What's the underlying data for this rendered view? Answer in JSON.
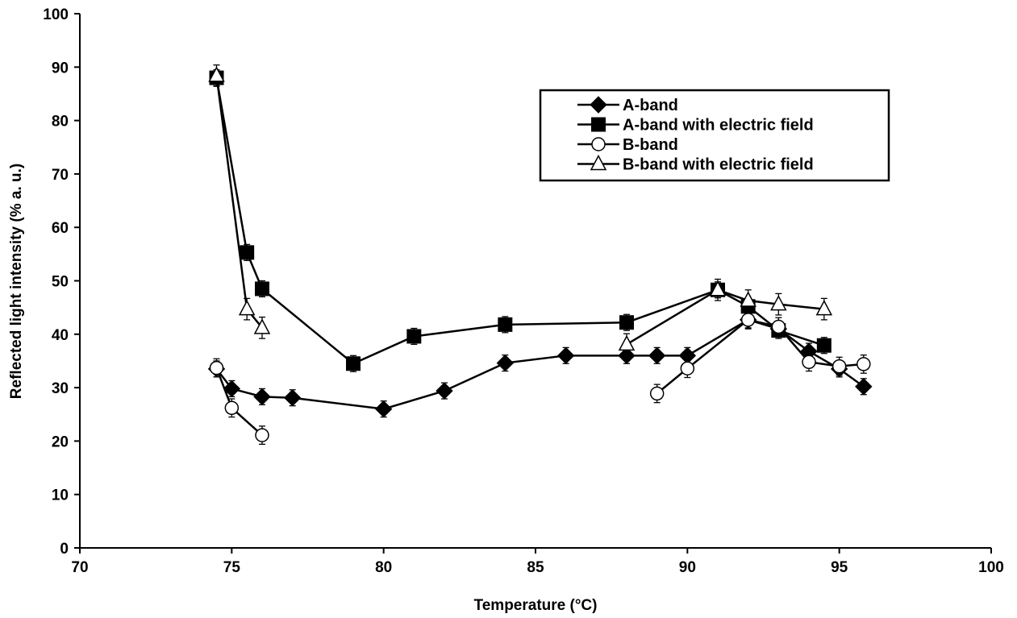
{
  "chart_data": {
    "type": "scatter",
    "title": "",
    "xlabel": "Temperature (°C)",
    "ylabel": "Reflected light intensity (% a. u.)",
    "xlim": [
      70,
      100
    ],
    "ylim": [
      0,
      100
    ],
    "xticks": [
      70,
      75,
      80,
      85,
      90,
      95,
      100
    ],
    "yticks": [
      0,
      10,
      20,
      30,
      40,
      50,
      60,
      70,
      80,
      90,
      100
    ],
    "grid": false,
    "legend_position": "top-right",
    "series": [
      {
        "name": "A-band",
        "marker": "diamond-filled",
        "segments": [
          [
            [
              74.5,
              33.5
            ],
            [
              75.0,
              29.8
            ],
            [
              76.0,
              28.3
            ],
            [
              77.0,
              28.1
            ],
            [
              80.0,
              26.0
            ],
            [
              82.0,
              29.4
            ],
            [
              84.0,
              34.6
            ],
            [
              86.0,
              36.0
            ],
            [
              88.0,
              36.0
            ],
            [
              89.0,
              36.0
            ],
            [
              90.0,
              36.0
            ],
            [
              92.0,
              42.7
            ],
            [
              93.0,
              41.0
            ],
            [
              94.0,
              36.8
            ],
            [
              95.0,
              33.5
            ],
            [
              95.8,
              30.2
            ]
          ]
        ],
        "error": 1.5
      },
      {
        "name": "A-band with electric field",
        "marker": "square-filled",
        "segments": [
          [
            [
              74.5,
              88.0
            ],
            [
              75.5,
              55.3
            ],
            [
              76.0,
              48.5
            ],
            [
              79.0,
              34.5
            ],
            [
              81.0,
              39.6
            ],
            [
              84.0,
              41.8
            ],
            [
              88.0,
              42.2
            ],
            [
              91.0,
              48.3
            ],
            [
              92.0,
              45.2
            ],
            [
              93.0,
              40.7
            ],
            [
              94.5,
              37.9
            ]
          ]
        ],
        "error": 1.5
      },
      {
        "name": "B-band",
        "marker": "circle-open",
        "segments": [
          [
            [
              74.5,
              33.7
            ],
            [
              75.0,
              26.2
            ],
            [
              76.0,
              21.1
            ]
          ],
          [
            [
              89.0,
              28.9
            ],
            [
              90.0,
              33.6
            ],
            [
              92.0,
              42.7
            ],
            [
              93.0,
              41.4
            ],
            [
              94.0,
              34.8
            ],
            [
              95.0,
              34.0
            ],
            [
              95.8,
              34.4
            ]
          ]
        ],
        "error": 1.7
      },
      {
        "name": "B-band with electric field",
        "marker": "triangle-open",
        "segments": [
          [
            [
              74.5,
              88.4
            ],
            [
              75.5,
              44.7
            ],
            [
              76.0,
              41.2
            ]
          ],
          [
            [
              88.0,
              38.1
            ],
            [
              91.0,
              48.3
            ],
            [
              92.0,
              46.3
            ],
            [
              93.0,
              45.6
            ],
            [
              94.5,
              44.7
            ]
          ]
        ],
        "error": 2.0
      }
    ]
  }
}
